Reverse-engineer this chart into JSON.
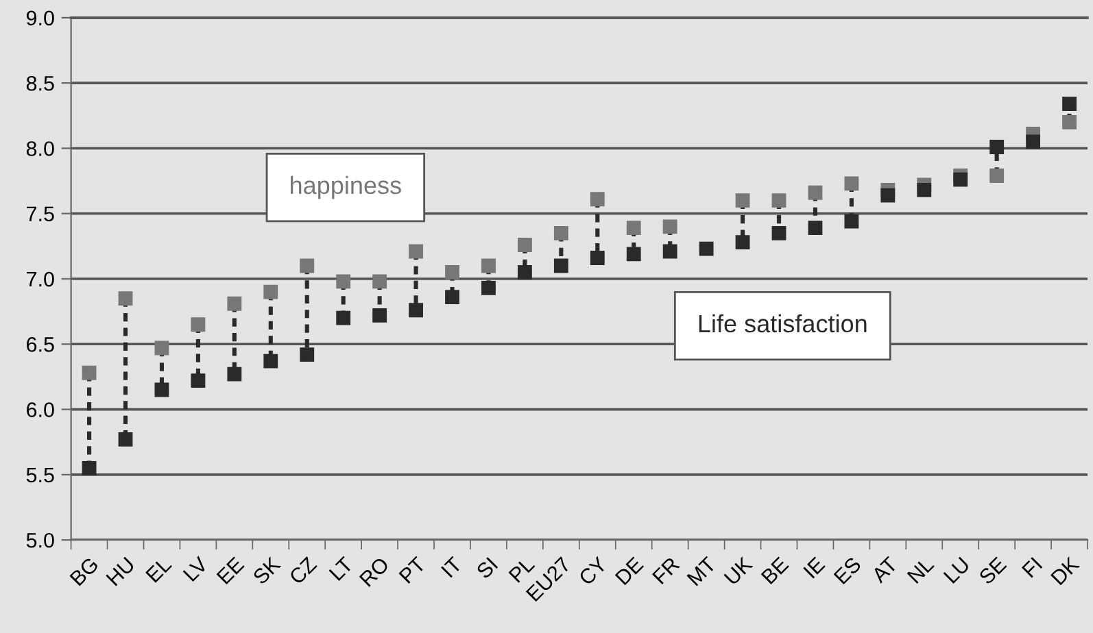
{
  "chart_data": {
    "type": "scatter",
    "categories": [
      "BG",
      "HU",
      "EL",
      "LV",
      "EE",
      "SK",
      "CZ",
      "LT",
      "RO",
      "PT",
      "IT",
      "SI",
      "PL",
      "EU27",
      "CY",
      "DE",
      "FR",
      "MT",
      "UK",
      "BE",
      "IE",
      "ES",
      "AT",
      "NL",
      "LU",
      "SE",
      "FI",
      "DK"
    ],
    "series": [
      {
        "name": "happiness",
        "color": "#777777",
        "values": [
          6.28,
          6.85,
          6.47,
          6.65,
          6.81,
          6.9,
          7.1,
          6.98,
          6.98,
          7.21,
          7.05,
          7.1,
          7.26,
          7.35,
          7.61,
          7.39,
          7.4,
          null,
          7.6,
          7.6,
          7.66,
          7.73,
          7.68,
          7.72,
          7.79,
          7.79,
          8.11,
          8.2
        ]
      },
      {
        "name": "Life satisfaction",
        "color": "#2a2a2a",
        "values": [
          5.55,
          5.77,
          6.15,
          6.22,
          6.27,
          6.37,
          6.42,
          6.7,
          6.72,
          6.76,
          6.86,
          6.93,
          7.05,
          7.1,
          7.16,
          7.19,
          7.21,
          7.23,
          7.28,
          7.35,
          7.39,
          7.44,
          7.64,
          7.68,
          7.76,
          8.01,
          8.05,
          8.34
        ]
      }
    ],
    "ylim": [
      5.0,
      9.0
    ],
    "yticks": [
      {
        "value": 5.0,
        "label": "5.0"
      },
      {
        "value": 5.5,
        "label": "5.5"
      },
      {
        "value": 6.0,
        "label": "6.0"
      },
      {
        "value": 6.5,
        "label": "6.5"
      },
      {
        "value": 7.0,
        "label": "7.0"
      },
      {
        "value": 7.5,
        "label": "7.5"
      },
      {
        "value": 8.0,
        "label": "8.0"
      },
      {
        "value": 8.5,
        "label": "8.5"
      },
      {
        "value": 9.0,
        "label": "9.0"
      }
    ],
    "grid": "y",
    "legend": false,
    "marker": "square"
  }
}
